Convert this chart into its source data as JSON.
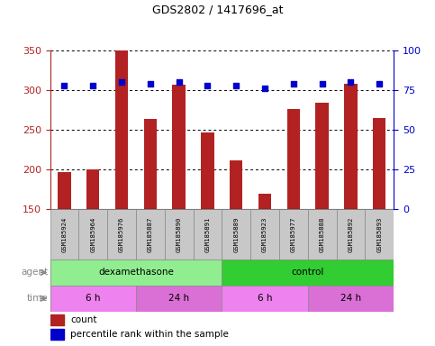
{
  "title": "GDS2802 / 1417696_at",
  "samples": [
    "GSM185924",
    "GSM185964",
    "GSM185976",
    "GSM185887",
    "GSM185890",
    "GSM185891",
    "GSM185889",
    "GSM185923",
    "GSM185977",
    "GSM185888",
    "GSM185892",
    "GSM185893"
  ],
  "counts": [
    197,
    200,
    350,
    264,
    307,
    247,
    212,
    170,
    276,
    284,
    308,
    265
  ],
  "percentile_ranks": [
    78,
    78,
    80,
    79,
    80,
    78,
    78,
    76,
    79,
    79,
    80,
    79
  ],
  "ylim_left": [
    150,
    350
  ],
  "ylim_right": [
    0,
    100
  ],
  "yticks_left": [
    150,
    200,
    250,
    300,
    350
  ],
  "yticks_right": [
    0,
    25,
    50,
    75,
    100
  ],
  "bar_color": "#B22222",
  "dot_color": "#0000CC",
  "background_color": "#FFFFFF",
  "agent_labels": [
    {
      "text": "dexamethasone",
      "start": 0,
      "end": 5,
      "color": "#90EE90"
    },
    {
      "text": "control",
      "start": 6,
      "end": 11,
      "color": "#32CD32"
    }
  ],
  "time_labels": [
    {
      "text": "6 h",
      "start": 0,
      "end": 2,
      "color": "#EE82EE"
    },
    {
      "text": "24 h",
      "start": 3,
      "end": 5,
      "color": "#DA70D6"
    },
    {
      "text": "6 h",
      "start": 6,
      "end": 8,
      "color": "#EE82EE"
    },
    {
      "text": "24 h",
      "start": 9,
      "end": 11,
      "color": "#DA70D6"
    }
  ],
  "legend_count_color": "#B22222",
  "legend_dot_color": "#0000CC",
  "tick_color_left": "#B22222",
  "tick_color_right": "#0000CC",
  "bar_width": 0.45,
  "figsize": [
    4.83,
    3.84
  ],
  "dpi": 100
}
